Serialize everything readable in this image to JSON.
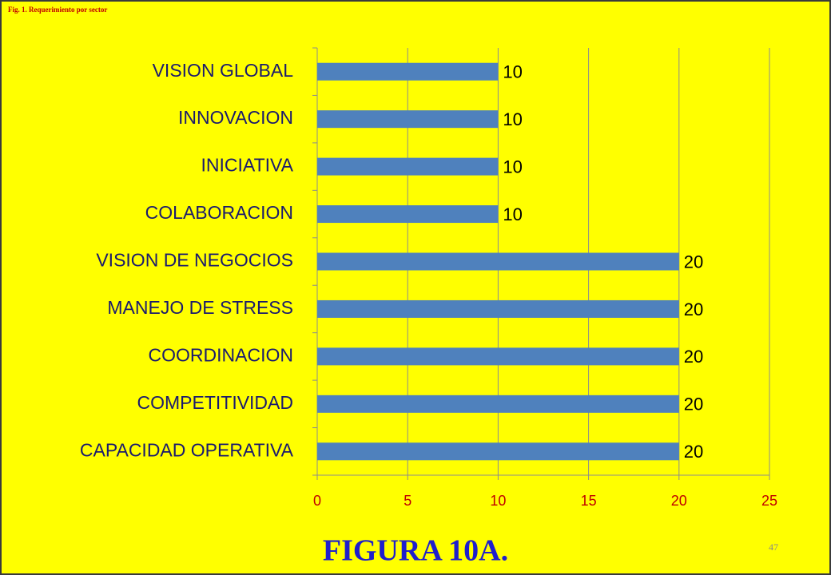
{
  "caption": "Fig. 1. Requerimiento por sector",
  "figure_label": "FIGURA 10A.",
  "page_number": "47",
  "chart_data": {
    "type": "bar",
    "orientation": "horizontal",
    "categories": [
      "VISION GLOBAL",
      "INNOVACION",
      "INICIATIVA",
      "COLABORACION",
      "VISION DE NEGOCIOS",
      "MANEJO DE STRESS",
      "COORDINACION",
      "COMPETITIVIDAD",
      "CAPACIDAD OPERATIVA"
    ],
    "values": [
      10,
      10,
      10,
      10,
      20,
      20,
      20,
      20,
      20
    ],
    "color": "#4f81bd",
    "xlim": [
      0,
      25
    ],
    "xticks": [
      0,
      5,
      10,
      15,
      20,
      25
    ],
    "grid": true
  }
}
